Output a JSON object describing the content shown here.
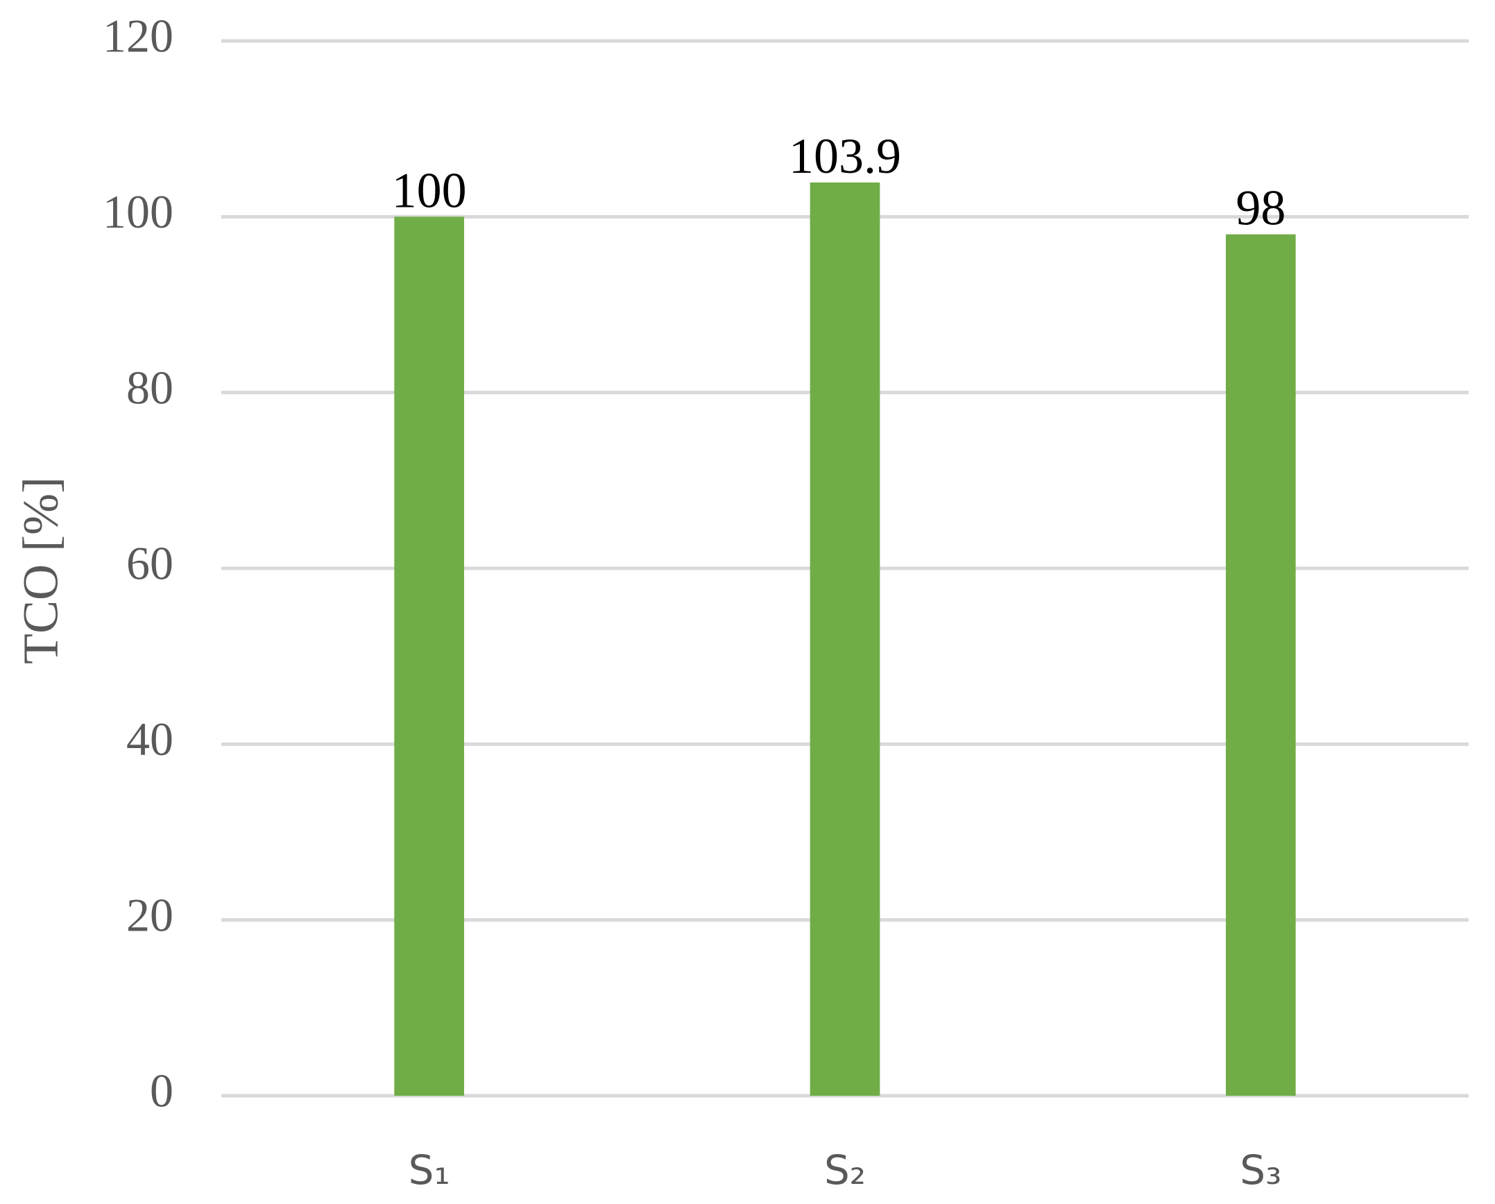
{
  "chart_data": {
    "type": "bar",
    "y_axis_label": "TCO [%]",
    "categories": [
      "S₁",
      "S₂",
      "S₃"
    ],
    "values": [
      100,
      103.9,
      98
    ],
    "color": "#70ad47",
    "ylim": [
      0,
      120
    ],
    "yticks": [
      0,
      20,
      40,
      60,
      80,
      100,
      120
    ],
    "grid": true
  }
}
